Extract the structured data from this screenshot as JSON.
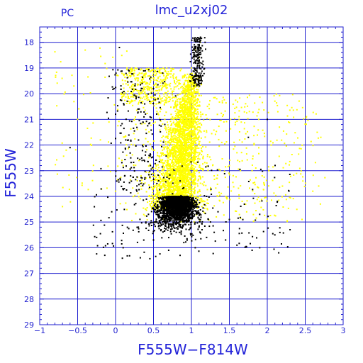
{
  "chart_data": {
    "type": "scatter",
    "title": "lmc_u2xj02",
    "subtitle": "PC",
    "xlabel": "F555W−F814W",
    "ylabel": "F555W",
    "xlim": [
      -1,
      3
    ],
    "ylim": [
      29,
      17.4
    ],
    "y_inverted": true,
    "grid": true,
    "x_major_ticks": [
      -1,
      -0.5,
      0,
      0.5,
      1,
      1.5,
      2,
      2.5,
      3
    ],
    "x_tick_labels": [
      "−1",
      "−0.5",
      "0",
      "0.5",
      "1",
      "1.5",
      "2",
      "2.5",
      "3"
    ],
    "y_major_ticks": [
      18,
      19,
      20,
      21,
      22,
      23,
      24,
      25,
      26,
      27,
      28,
      29
    ],
    "y_tick_labels": [
      "18",
      "19",
      "20",
      "21",
      "22",
      "23",
      "24",
      "25",
      "26",
      "27",
      "28",
      "29"
    ],
    "series": [
      {
        "color": "#ffff00",
        "point_count_approx": 6000,
        "points": [
          [
            1.05,
            18.3
          ],
          [
            1.12,
            18.0
          ],
          [
            1.1,
            18.6
          ],
          [
            1.0,
            19.0
          ],
          [
            0.95,
            19.5
          ],
          [
            1.02,
            19.8
          ],
          [
            0.4,
            19.2
          ],
          [
            0.45,
            19.3
          ],
          [
            0.35,
            19.2
          ],
          [
            0.55,
            19.5
          ],
          [
            0.3,
            19.4
          ],
          [
            0.25,
            19.1
          ],
          [
            0.2,
            19.3
          ],
          [
            0.15,
            19.0
          ],
          [
            0.5,
            19.9
          ],
          [
            0.6,
            20.2
          ],
          [
            0.85,
            20.5
          ],
          [
            0.9,
            21.0
          ],
          [
            0.8,
            21.5
          ],
          [
            0.75,
            22.0
          ],
          [
            0.7,
            22.5
          ],
          [
            0.72,
            23.0
          ],
          [
            0.85,
            22.2
          ],
          [
            0.95,
            21.8
          ],
          [
            0.65,
            21.0
          ],
          [
            0.6,
            20.6
          ],
          [
            0.3,
            20.4
          ],
          [
            0.25,
            21.0
          ],
          [
            0.4,
            21.4
          ],
          [
            0.5,
            22.2
          ],
          [
            1.2,
            21.5
          ],
          [
            1.4,
            21.9
          ],
          [
            1.6,
            22.3
          ],
          [
            1.8,
            23.0
          ],
          [
            1.5,
            22.8
          ],
          [
            1.3,
            23.2
          ],
          [
            2.2,
            23.6
          ],
          [
            2.7,
            24.3
          ],
          [
            2.6,
            23.8
          ],
          [
            1.9,
            24.2
          ],
          [
            0.1,
            22.8
          ],
          [
            0.0,
            23.8
          ],
          [
            -0.2,
            21.8
          ],
          [
            -0.5,
            21.0
          ],
          [
            -0.55,
            19.7
          ],
          [
            -0.4,
            18.3
          ],
          [
            -0.65,
            22.2
          ],
          [
            -0.7,
            24.4
          ],
          [
            0.55,
            23.6
          ],
          [
            0.65,
            24.0
          ],
          [
            0.8,
            23.5
          ],
          [
            0.95,
            24.1
          ],
          [
            1.1,
            24.3
          ],
          [
            1.35,
            24.0
          ],
          [
            1.0,
            22.6
          ],
          [
            0.9,
            23.3
          ],
          [
            0.78,
            22.8
          ],
          [
            0.68,
            21.7
          ],
          [
            0.58,
            23.2
          ],
          [
            1.15,
            20.8
          ]
        ]
      },
      {
        "color": "#000000",
        "point_count_approx": 3000,
        "points": [
          [
            1.12,
            17.8
          ],
          [
            1.18,
            18.0
          ],
          [
            1.05,
            18.5
          ],
          [
            1.1,
            19.2
          ],
          [
            1.15,
            19.3
          ],
          [
            1.08,
            18.9
          ],
          [
            0.05,
            18.2
          ],
          [
            0.0,
            20.8
          ],
          [
            -0.02,
            19.8
          ],
          [
            -0.6,
            22.1
          ],
          [
            0.2,
            22.5
          ],
          [
            0.35,
            22.6
          ],
          [
            0.55,
            24.2
          ],
          [
            0.65,
            24.5
          ],
          [
            0.75,
            24.7
          ],
          [
            0.85,
            24.6
          ],
          [
            0.95,
            24.8
          ],
          [
            1.0,
            25.0
          ],
          [
            0.7,
            25.1
          ],
          [
            0.6,
            25.3
          ],
          [
            0.8,
            25.4
          ],
          [
            1.1,
            25.2
          ],
          [
            1.2,
            25.6
          ],
          [
            0.5,
            25.7
          ],
          [
            0.4,
            25.0
          ],
          [
            0.3,
            25.2
          ],
          [
            0.9,
            25.8
          ],
          [
            1.05,
            26.0
          ],
          [
            1.3,
            25.4
          ],
          [
            1.45,
            25.7
          ],
          [
            1.6,
            25.9
          ],
          [
            1.8,
            26.1
          ],
          [
            1.9,
            26.0
          ],
          [
            2.15,
            26.2
          ],
          [
            2.3,
            25.3
          ],
          [
            2.0,
            21.0
          ],
          [
            1.75,
            21.7
          ],
          [
            1.9,
            24.7
          ],
          [
            2.1,
            25.5
          ],
          [
            -0.05,
            24.6
          ],
          [
            -0.25,
            25.6
          ],
          [
            0.1,
            26.0
          ],
          [
            0.75,
            23.9
          ],
          [
            0.85,
            23.4
          ],
          [
            0.95,
            24.0
          ],
          [
            1.2,
            24.0
          ],
          [
            1.35,
            24.6
          ],
          [
            1.5,
            24.9
          ],
          [
            0.45,
            20.3
          ],
          [
            0.5,
            19.8
          ],
          [
            0.35,
            19.6
          ],
          [
            0.65,
            21.2
          ],
          [
            0.85,
            26.3
          ],
          [
            0.7,
            26.1
          ]
        ]
      }
    ]
  }
}
